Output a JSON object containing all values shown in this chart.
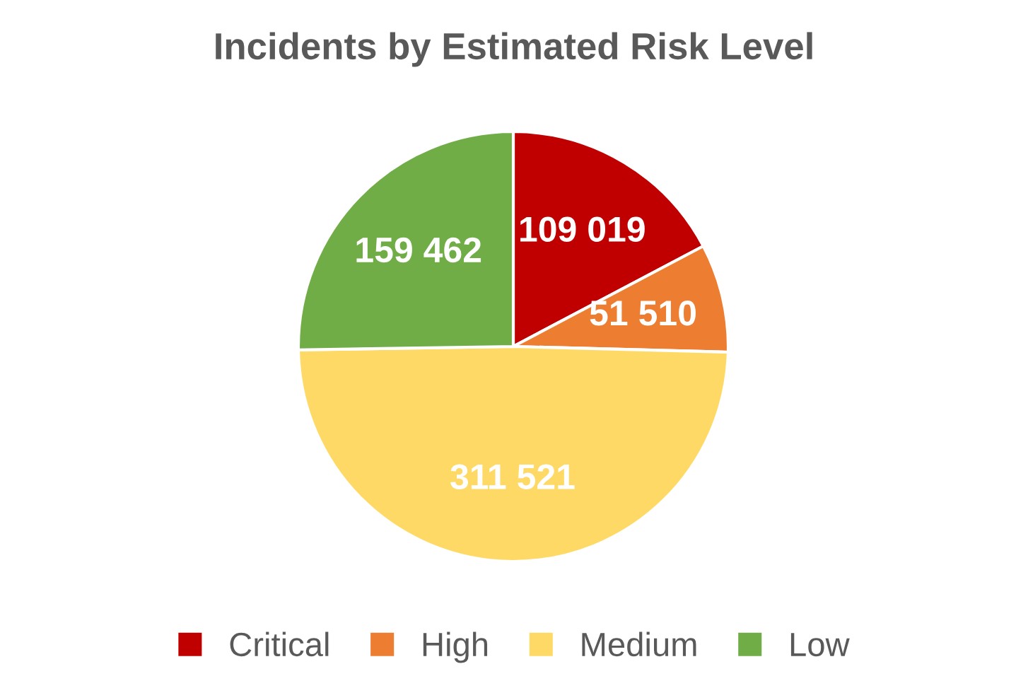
{
  "chart_data": {
    "type": "pie",
    "title": "Incidents by Estimated Risk Level",
    "categories": [
      "Critical",
      "High",
      "Medium",
      "Low"
    ],
    "values": [
      109019,
      51510,
      311521,
      159462
    ],
    "colors": [
      "#c00000",
      "#ed7d31",
      "#ffd966",
      "#70ad47"
    ],
    "value_labels": [
      "109 019",
      "51 510",
      "311 521",
      "159 462"
    ],
    "legend": "bottom"
  }
}
